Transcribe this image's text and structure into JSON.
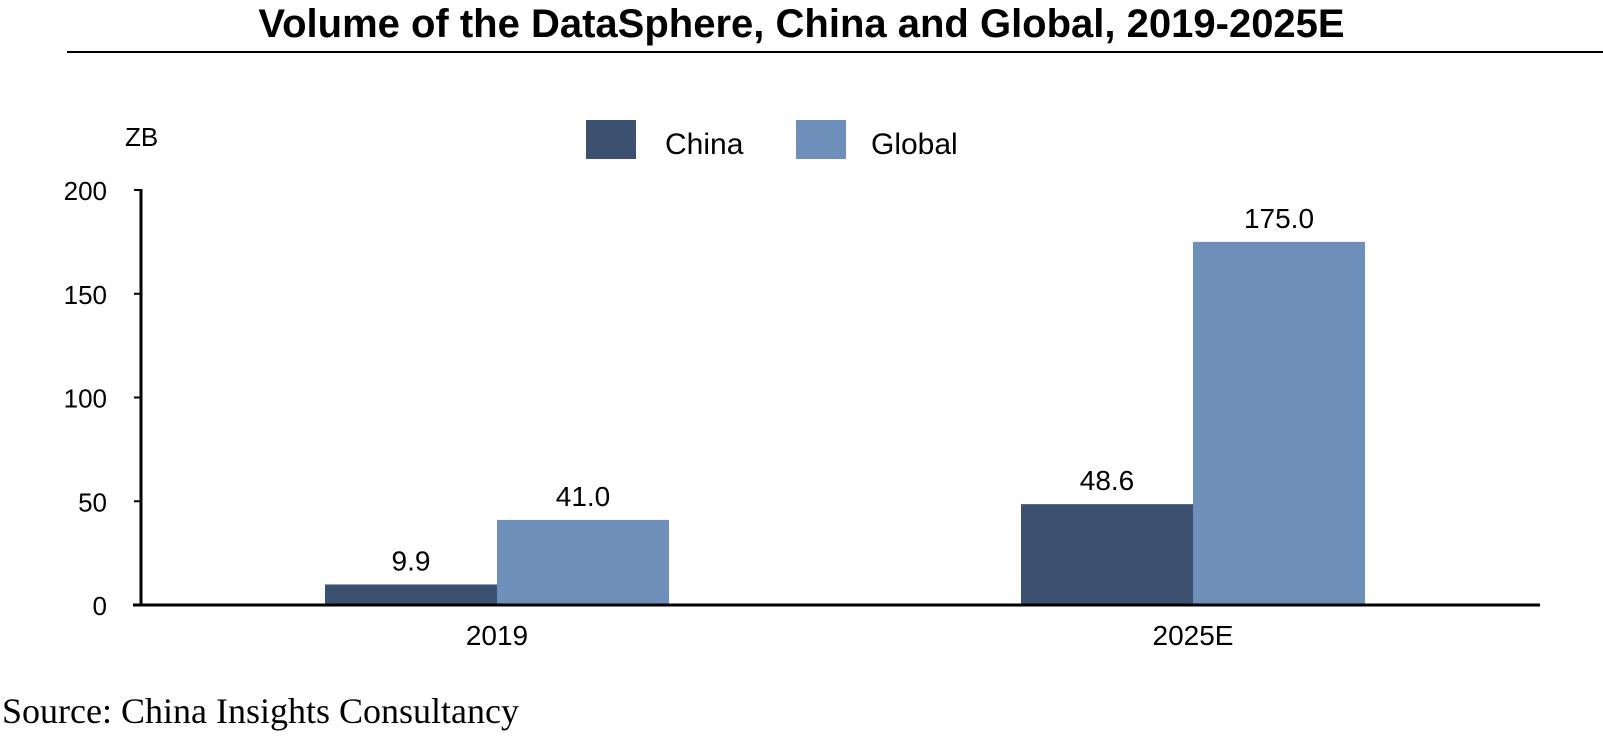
{
  "page": {
    "title": "Volume of the DataSphere, China and Global, 2019-2025E",
    "source": "Source: China Insights Consultancy"
  },
  "chart_data": {
    "type": "bar",
    "title": "Volume of the DataSphere, China and Global, 2019-2025E",
    "xlabel": "",
    "ylabel": "ZB",
    "categories": [
      "2019",
      "2025E"
    ],
    "series": [
      {
        "name": "China",
        "values": [
          9.9,
          48.6
        ],
        "labels": [
          "9.9",
          "48.6"
        ],
        "color": "#3b516f"
      },
      {
        "name": "Global",
        "values": [
          41.0,
          175.0
        ],
        "labels": [
          "41.0",
          "175.0"
        ],
        "color": "#6f8fbb"
      }
    ],
    "ylim": [
      0,
      200
    ],
    "yticks": [
      0,
      50,
      100,
      150,
      200
    ],
    "ytick_labels": [
      "0",
      "50",
      "100",
      "150",
      "200"
    ],
    "grid": false,
    "legend": "top-center"
  }
}
